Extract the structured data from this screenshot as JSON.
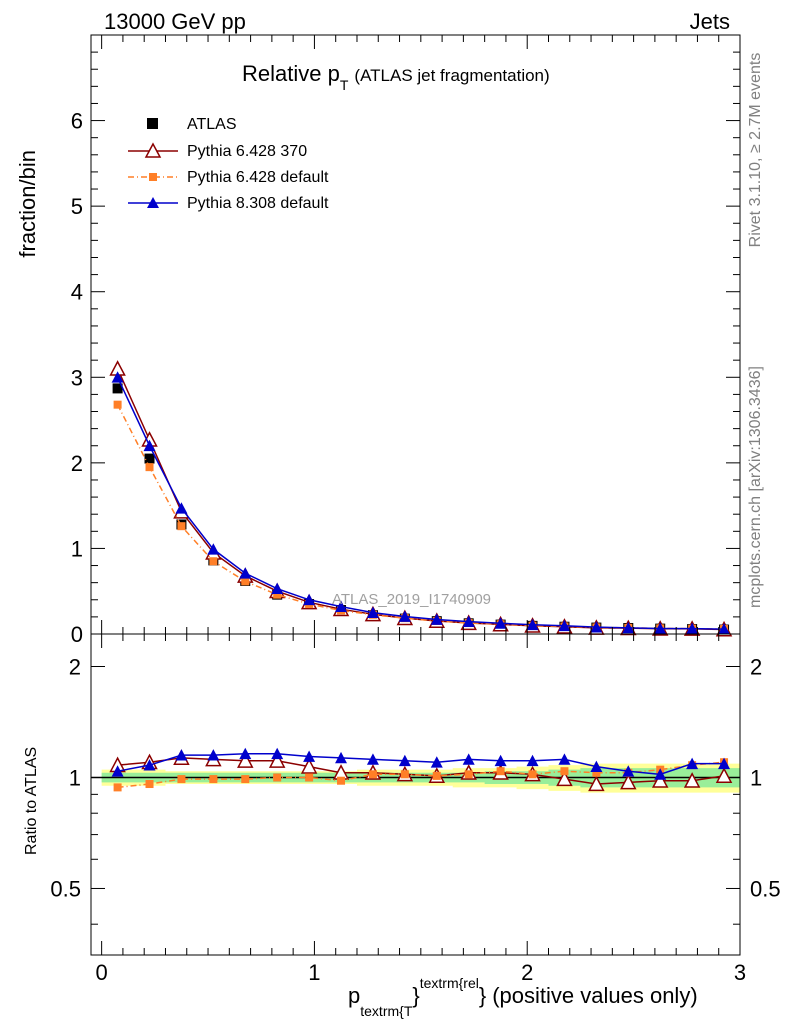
{
  "header": {
    "left": "13000 GeV pp",
    "right": "Jets"
  },
  "title": {
    "main": "Relative p",
    "sub": "T",
    "suffix": "(ATLAS jet fragmentation)"
  },
  "side_labels": {
    "rivet": "Rivet 3.1.10, ≥ 2.7M events",
    "mcplots": "mcplots.cern.ch [arXiv:1306.3436]"
  },
  "watermark": "ATLAS_2019_I1740909",
  "top_axis": {
    "ylabel": "fraction/bin",
    "ticks": [
      "0",
      "1",
      "2",
      "3",
      "4",
      "5",
      "6"
    ]
  },
  "bottom_axis": {
    "ylabel": "Ratio to ATLAS",
    "ticks_left": [
      "0.5",
      "1",
      "2"
    ],
    "ticks_right": [
      "0.5",
      "1",
      "2"
    ]
  },
  "x_axis": {
    "ticks": [
      "0",
      "1",
      "2",
      "3"
    ],
    "label_p": "p",
    "label_sub": "textrm{T",
    "label_close": "}",
    "label_sup": "textrm{rel",
    "label_close2": "}",
    "label_suffix": "(positive values only)"
  },
  "legend": [
    {
      "label": "ATLAS"
    },
    {
      "label": "Pythia 6.428 370"
    },
    {
      "label": "Pythia 6.428 default"
    },
    {
      "label": "Pythia 8.308 default"
    }
  ],
  "chart_data": {
    "type": "line",
    "x": [
      0.075,
      0.225,
      0.375,
      0.525,
      0.675,
      0.825,
      0.975,
      1.125,
      1.275,
      1.425,
      1.575,
      1.725,
      1.875,
      2.025,
      2.175,
      2.325,
      2.475,
      2.625,
      2.775,
      2.925
    ],
    "xlim": [
      -0.05,
      3.0
    ],
    "ylim": [
      0,
      7
    ],
    "ratio_ylim": [
      0.33,
      2.45
    ],
    "series": [
      {
        "name": "ATLAS",
        "color": "#000000",
        "values": [
          2.87,
          2.05,
          1.28,
          0.86,
          0.62,
          0.46,
          0.35,
          0.28,
          0.22,
          0.18,
          0.15,
          0.125,
          0.11,
          0.095,
          0.085,
          0.075,
          0.07,
          0.063,
          0.058,
          0.052
        ]
      },
      {
        "name": "Pythia 6.428 370",
        "color": "#8b0000",
        "values": [
          3.1,
          2.27,
          1.43,
          0.95,
          0.68,
          0.5,
          0.37,
          0.29,
          0.23,
          0.185,
          0.152,
          0.128,
          0.112,
          0.097,
          0.085,
          0.072,
          0.068,
          0.062,
          0.06,
          0.053
        ],
        "ratio": [
          1.08,
          1.1,
          1.13,
          1.12,
          1.11,
          1.11,
          1.07,
          1.03,
          1.03,
          1.02,
          1.01,
          1.03,
          1.03,
          1.02,
          0.99,
          0.96,
          0.97,
          0.98,
          0.98,
          1.01
        ]
      },
      {
        "name": "Pythia 6.428 default",
        "color": "#ff7f27",
        "values": [
          2.68,
          1.95,
          1.26,
          0.85,
          0.615,
          0.46,
          0.35,
          0.275,
          0.225,
          0.185,
          0.152,
          0.128,
          0.114,
          0.097,
          0.088,
          0.077,
          0.072,
          0.066,
          0.063,
          0.058
        ],
        "ratio": [
          0.94,
          0.96,
          0.99,
          0.99,
          0.99,
          1.0,
          1.0,
          0.98,
          1.02,
          1.02,
          1.01,
          1.02,
          1.04,
          1.02,
          1.04,
          1.03,
          1.03,
          1.05,
          1.08,
          1.1
        ]
      },
      {
        "name": "Pythia 8.308 default",
        "color": "#0000cc",
        "values": [
          3.0,
          2.2,
          1.47,
          0.99,
          0.71,
          0.53,
          0.4,
          0.32,
          0.25,
          0.205,
          0.17,
          0.145,
          0.125,
          0.108,
          0.097,
          0.08,
          0.072,
          0.065,
          0.063,
          0.057
        ],
        "ratio": [
          1.04,
          1.08,
          1.15,
          1.15,
          1.16,
          1.16,
          1.14,
          1.13,
          1.12,
          1.11,
          1.1,
          1.12,
          1.11,
          1.11,
          1.12,
          1.07,
          1.04,
          1.02,
          1.09,
          1.09
        ]
      }
    ],
    "ratio_band_green": [
      0.03,
      0.03,
      0.03,
      0.03,
      0.03,
      0.03,
      0.03,
      0.03,
      0.03,
      0.03,
      0.03,
      0.03,
      0.04,
      0.04,
      0.05,
      0.06,
      0.06,
      0.06,
      0.06,
      0.06
    ],
    "ratio_band_yellow": [
      0.05,
      0.05,
      0.04,
      0.04,
      0.04,
      0.04,
      0.04,
      0.04,
      0.05,
      0.05,
      0.05,
      0.06,
      0.06,
      0.07,
      0.08,
      0.09,
      0.09,
      0.09,
      0.09,
      0.09
    ]
  }
}
